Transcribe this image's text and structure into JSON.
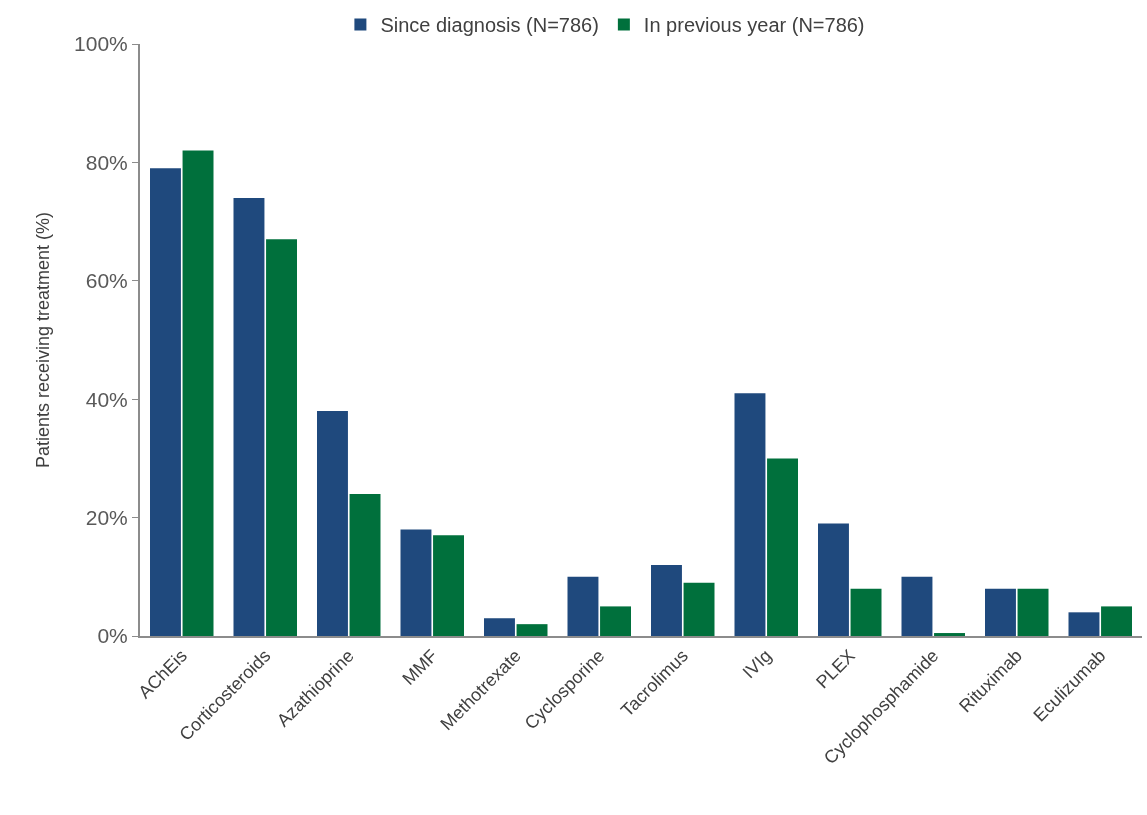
{
  "chart_data": {
    "type": "bar",
    "ylabel": "Patients receiving treatment (%)",
    "categories": [
      "AChEis",
      "Corticosteroids",
      "Azathioprine",
      "MMF",
      "Methotrexate",
      "Cyclosporine",
      "Tacrolimus",
      "IVIg",
      "PLEX",
      "Cyclophosphamide",
      "Rituximab",
      "Eculizumab"
    ],
    "series": [
      {
        "name": "Since diagnosis (N=786)",
        "color": "#1f497d",
        "values": [
          79,
          74,
          38,
          18,
          3,
          10,
          12,
          41,
          19,
          10,
          8,
          4
        ]
      },
      {
        "name": "In previous year (N=786)",
        "color": "#00703c",
        "values": [
          82,
          67,
          24,
          17,
          2,
          5,
          9,
          30,
          8,
          0.5,
          8,
          5
        ]
      }
    ],
    "ylim": [
      0,
      100
    ],
    "yticks": [
      {
        "value": 0,
        "label": "0%"
      },
      {
        "value": 20,
        "label": "20%"
      },
      {
        "value": 40,
        "label": "40%"
      },
      {
        "value": 60,
        "label": "60%"
      },
      {
        "value": 80,
        "label": "80%"
      },
      {
        "value": 100,
        "label": "100%"
      }
    ],
    "grid": false,
    "legend": "top"
  }
}
